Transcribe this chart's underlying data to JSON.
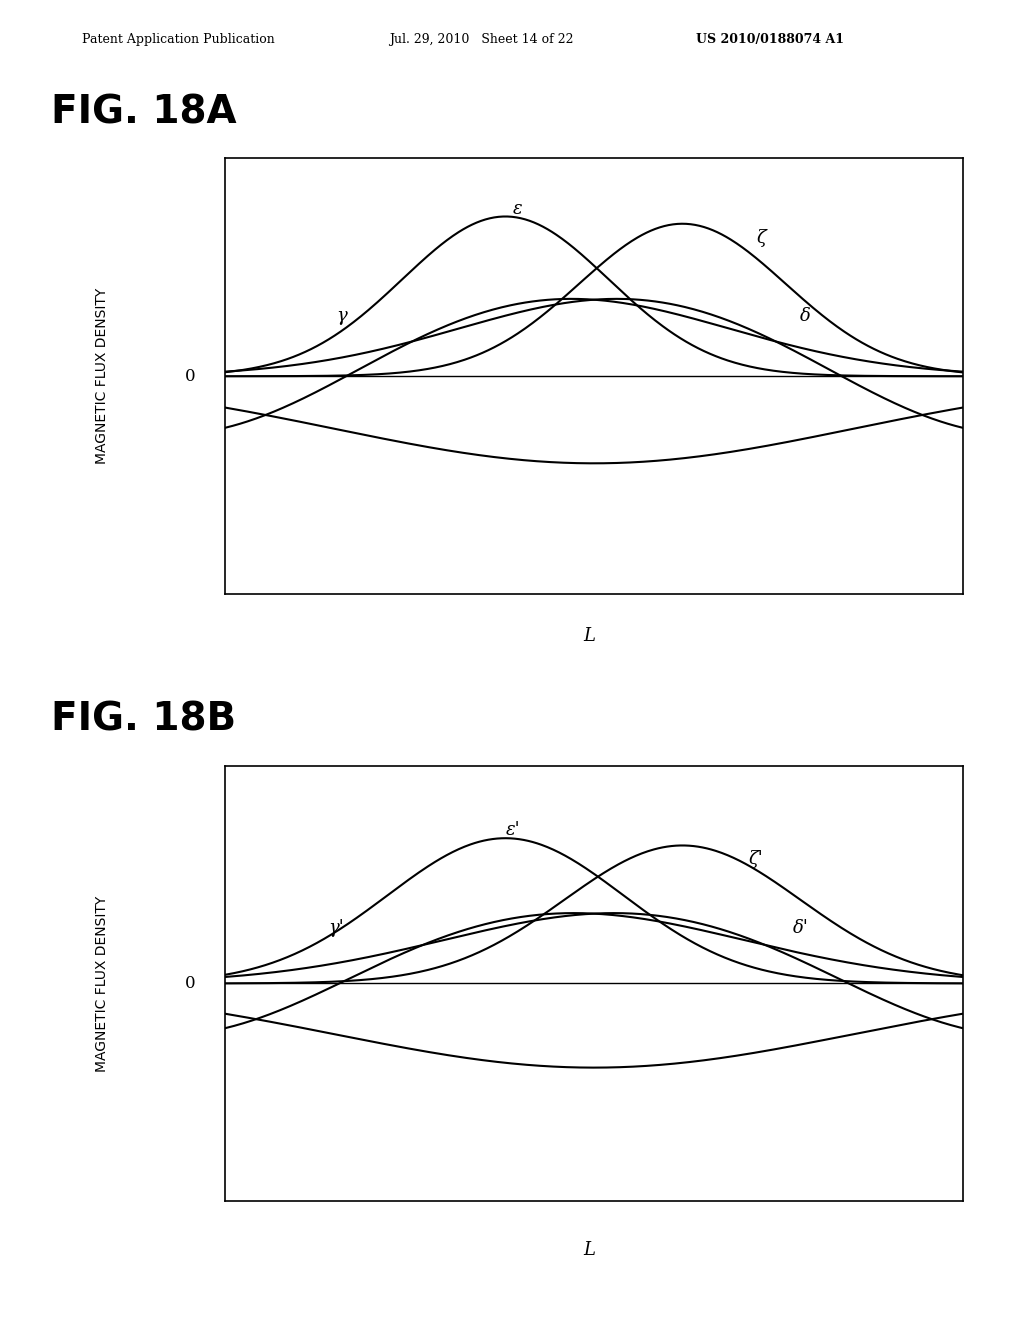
{
  "title_A": "FIG. 18A",
  "title_B": "FIG. 18B",
  "header_left": "Patent Application Publication",
  "header_mid": "Jul. 29, 2010   Sheet 14 of 22",
  "header_right": "US 2010/0188074 A1",
  "ylabel": "MAGNETIC FLUX DENSITY",
  "xlabel": "L",
  "background_color": "#ffffff",
  "line_color": "#000000",
  "labels_A": [
    "ε",
    "ζ",
    "γ",
    "δ"
  ],
  "labels_B": [
    "ε'",
    "ζ'",
    "γ'",
    "δ'"
  ]
}
